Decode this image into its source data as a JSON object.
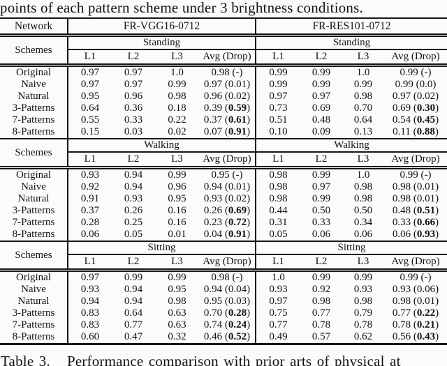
{
  "page": {
    "top_text": "points of each pattern scheme under 3 brightness conditions.",
    "caption_label": "Table 3.",
    "caption_text": "Performance comparison with prior arts of physical at",
    "text_color": "#121212",
    "background_color": "#fbfbfa",
    "rule_color": "#161616"
  },
  "table": {
    "corner_labels": {
      "network": "Network",
      "schemes": "Schemes"
    },
    "networks": [
      "FR-VGG16-0712",
      "FR-RES101-0712"
    ],
    "col_headers": [
      "L1",
      "L2",
      "L3",
      "Avg (Drop)"
    ],
    "sections": [
      {
        "condition": "Standing",
        "rows": [
          {
            "scheme": "Original",
            "vgg": {
              "l1": "0.97",
              "l2": "0.97",
              "l3": "1.0",
              "avg": "0.98",
              "drop": "-",
              "drop_bold": false
            },
            "res": {
              "l1": "0.99",
              "l2": "0.99",
              "l3": "1.0",
              "avg": "0.99",
              "drop": "-",
              "drop_bold": false
            }
          },
          {
            "scheme": "Naive",
            "vgg": {
              "l1": "0.97",
              "l2": "0.97",
              "l3": "0.99",
              "avg": "0.97",
              "drop": "0.01",
              "drop_bold": false
            },
            "res": {
              "l1": "0.99",
              "l2": "0.99",
              "l3": "0.99",
              "avg": "0.99",
              "drop": "0.0",
              "drop_bold": false
            }
          },
          {
            "scheme": "Natural",
            "vgg": {
              "l1": "0.95",
              "l2": "0.96",
              "l3": "0.98",
              "avg": "0.96",
              "drop": "0.02",
              "drop_bold": false
            },
            "res": {
              "l1": "0.97",
              "l2": "0.97",
              "l3": "0.98",
              "avg": "0.97",
              "drop": "0.02",
              "drop_bold": false
            }
          },
          {
            "scheme": "3-Patterns",
            "vgg": {
              "l1": "0.64",
              "l2": "0.36",
              "l3": "0.18",
              "avg": "0.39",
              "drop": "0.59",
              "drop_bold": true
            },
            "res": {
              "l1": "0.73",
              "l2": "0.69",
              "l3": "0.70",
              "avg": "0.69",
              "drop": "0.30",
              "drop_bold": true
            }
          },
          {
            "scheme": "7-Patterns",
            "vgg": {
              "l1": "0.55",
              "l2": "0.33",
              "l3": "0.22",
              "avg": "0.37",
              "drop": "0.61",
              "drop_bold": true
            },
            "res": {
              "l1": "0.51",
              "l2": "0.48",
              "l3": "0.64",
              "avg": "0.54",
              "drop": "0.45",
              "drop_bold": true
            }
          },
          {
            "scheme": "8-Patterns",
            "vgg": {
              "l1": "0.15",
              "l2": "0.03",
              "l3": "0.02",
              "avg": "0.07",
              "drop": "0.91",
              "drop_bold": true
            },
            "res": {
              "l1": "0.10",
              "l2": "0.09",
              "l3": "0.13",
              "avg": "0.11",
              "drop": "0.88",
              "drop_bold": true
            }
          }
        ]
      },
      {
        "condition": "Walking",
        "rows": [
          {
            "scheme": "Original",
            "vgg": {
              "l1": "0.93",
              "l2": "0.94",
              "l3": "0.99",
              "avg": "0.95",
              "drop": "-",
              "drop_bold": false
            },
            "res": {
              "l1": "0.98",
              "l2": "0.99",
              "l3": "1.0",
              "avg": "0.99",
              "drop": "-",
              "drop_bold": false
            }
          },
          {
            "scheme": "Naive",
            "vgg": {
              "l1": "0.92",
              "l2": "0.94",
              "l3": "0.96",
              "avg": "0.94",
              "drop": "0.01",
              "drop_bold": false
            },
            "res": {
              "l1": "0.98",
              "l2": "0.97",
              "l3": "0.98",
              "avg": "0.98",
              "drop": "0.01",
              "drop_bold": false
            }
          },
          {
            "scheme": "Natural",
            "vgg": {
              "l1": "0.91",
              "l2": "0.93",
              "l3": "0.95",
              "avg": "0.93",
              "drop": "0.02",
              "drop_bold": false
            },
            "res": {
              "l1": "0.98",
              "l2": "0.99",
              "l3": "0.98",
              "avg": "0.98",
              "drop": "0.01",
              "drop_bold": false
            }
          },
          {
            "scheme": "3-Patterns",
            "vgg": {
              "l1": "0.37",
              "l2": "0.26",
              "l3": "0.16",
              "avg": "0.26",
              "drop": "0.69",
              "drop_bold": true
            },
            "res": {
              "l1": "0.44",
              "l2": "0.50",
              "l3": "0.50",
              "avg": "0.48",
              "drop": "0.51",
              "drop_bold": true
            }
          },
          {
            "scheme": "7-Patterns",
            "vgg": {
              "l1": "0.28",
              "l2": "0.25",
              "l3": "0.16",
              "avg": "0.23",
              "drop": "0.72",
              "drop_bold": true
            },
            "res": {
              "l1": "0.31",
              "l2": "0.33",
              "l3": "0.34",
              "avg": "0.33",
              "drop": "0.66",
              "drop_bold": true
            }
          },
          {
            "scheme": "8-Patterns",
            "vgg": {
              "l1": "0.06",
              "l2": "0.05",
              "l3": "0.01",
              "avg": "0.04",
              "drop": "0.91",
              "drop_bold": true
            },
            "res": {
              "l1": "0.05",
              "l2": "0.06",
              "l3": "0.06",
              "avg": "0.06",
              "drop": "0.93",
              "drop_bold": true
            }
          }
        ]
      },
      {
        "condition": "Sitting",
        "rows": [
          {
            "scheme": "Original",
            "vgg": {
              "l1": "0.97",
              "l2": "0.99",
              "l3": "0.99",
              "avg": "0.98",
              "drop": "-",
              "drop_bold": false
            },
            "res": {
              "l1": "1.0",
              "l2": "0.99",
              "l3": "0.99",
              "avg": "0.99",
              "drop": "-",
              "drop_bold": false
            }
          },
          {
            "scheme": "Naive",
            "vgg": {
              "l1": "0.93",
              "l2": "0.94",
              "l3": "0.95",
              "avg": "0.94",
              "drop": "0.04",
              "drop_bold": false
            },
            "res": {
              "l1": "0.93",
              "l2": "0.92",
              "l3": "0.93",
              "avg": "0.93",
              "drop": "0.06",
              "drop_bold": false
            }
          },
          {
            "scheme": "Natural",
            "vgg": {
              "l1": "0.94",
              "l2": "0.94",
              "l3": "0.98",
              "avg": "0.95",
              "drop": "0.03",
              "drop_bold": false
            },
            "res": {
              "l1": "0.97",
              "l2": "0.98",
              "l3": "0.98",
              "avg": "0.98",
              "drop": "0.01",
              "drop_bold": false
            }
          },
          {
            "scheme": "3-Patterns",
            "vgg": {
              "l1": "0.83",
              "l2": "0.64",
              "l3": "0.63",
              "avg": "0.70",
              "drop": "0.28",
              "drop_bold": true
            },
            "res": {
              "l1": "0.75",
              "l2": "0.77",
              "l3": "0.79",
              "avg": "0.77",
              "drop": "0.22",
              "drop_bold": true
            }
          },
          {
            "scheme": "7-Patterns",
            "vgg": {
              "l1": "0.83",
              "l2": "0.77",
              "l3": "0.63",
              "avg": "0.74",
              "drop": "0.24",
              "drop_bold": true
            },
            "res": {
              "l1": "0.77",
              "l2": "0.78",
              "l3": "0.78",
              "avg": "0.78",
              "drop": "0.21",
              "drop_bold": true
            }
          },
          {
            "scheme": "8-Patterns",
            "vgg": {
              "l1": "0.60",
              "l2": "0.47",
              "l3": "0.32",
              "avg": "0.46",
              "drop": "0.52",
              "drop_bold": true
            },
            "res": {
              "l1": "0.49",
              "l2": "0.57",
              "l3": "0.62",
              "avg": "0.56",
              "drop": "0.43",
              "drop_bold": true
            }
          }
        ]
      }
    ]
  }
}
